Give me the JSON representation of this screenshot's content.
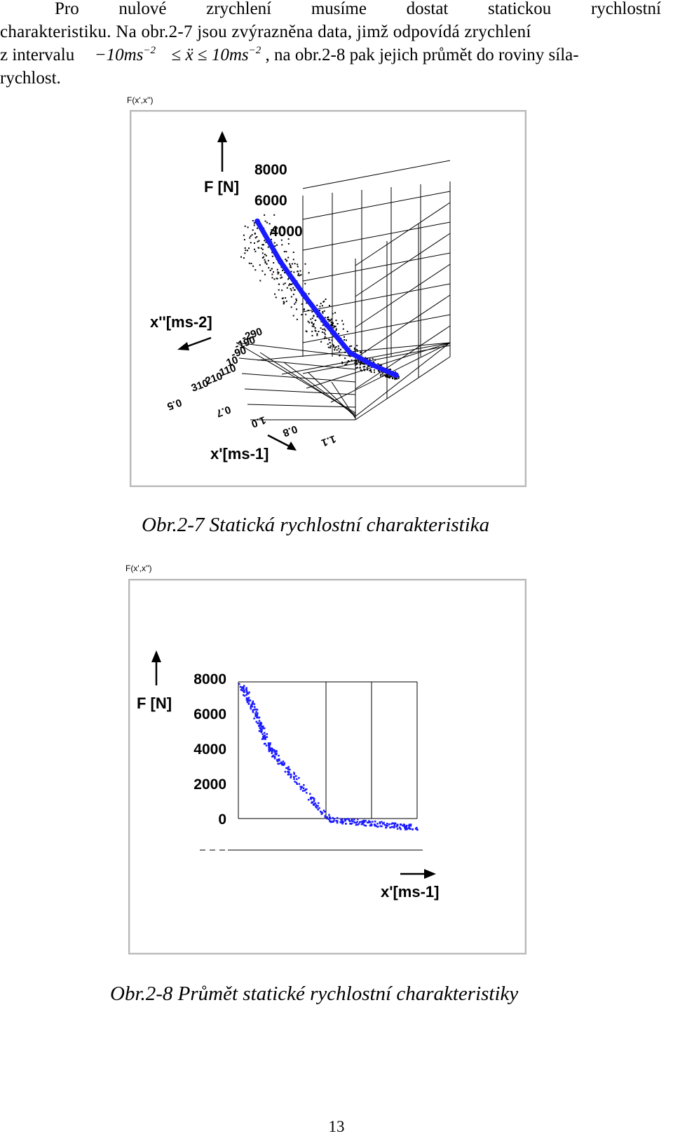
{
  "paragraph": {
    "line1": [
      "Pro",
      "nulové",
      "zrychlení",
      "musíme",
      "dostat",
      "statickou",
      "rychlostní"
    ],
    "line2": "charakteristiku. Na obr.2-7 jsou zvýrazněna data, jimž odpovídá zrychlení",
    "line3_prefix": "z intervalu",
    "math_a": "−10ms",
    "math_exp": "−2",
    "math_le1": "≤",
    "math_var": "ẍ",
    "math_le2": "≤",
    "math_b": "10ms",
    "line3_suffix": ", na obr.2-8 pak jejich průmět do roviny síla-",
    "line4": "rychlost."
  },
  "figure1": {
    "corner_label": "F(x',x'')",
    "axis_f": "F [N]",
    "axis_acc": "x''[ms-2]",
    "axis_vel": "x'[ms-1]",
    "f_ticks": [
      "8000",
      "6000",
      "4000"
    ],
    "acc_ticks": [
      "-290",
      "-190",
      "-90",
      "10",
      "110",
      "210",
      "310"
    ],
    "vel_ticks": [
      "0.5",
      "0.7",
      "1.0",
      "0.8",
      "1.1"
    ],
    "caption": "Obr.2-7  Statická rychlostní charakteristika"
  },
  "figure2": {
    "corner_label": "F(x',x'')",
    "axis_f": "F [N]",
    "axis_vel": "x'[ms-1]",
    "caption": "Obr.2-8  Průmět statické rychlostní charakteristiky"
  },
  "chart_data": [
    {
      "type": "scatter",
      "title": "",
      "xlabel": "x'[ms-1]",
      "ylabel": "F [N]",
      "zlabel": "x''[ms-2]",
      "x_ticks": [
        "0.5",
        "0.7",
        "1.0",
        "0.8",
        "1.1"
      ],
      "y_ticks": [
        "8000",
        "6000",
        "4000"
      ],
      "z_ticks": [
        "-290",
        "-190",
        "-90",
        "10",
        "110",
        "210",
        "310"
      ],
      "grid": true,
      "series": [
        {
          "color": "#1a1aff",
          "x": [
            0.5,
            0.6,
            0.7,
            0.8,
            0.9,
            1.0,
            1.1
          ],
          "y": [
            6200,
            4600,
            3300,
            2100,
            1000,
            500,
            100
          ]
        }
      ]
    },
    {
      "type": "scatter",
      "title": "",
      "xlabel": "x'[ms-1]",
      "ylabel": "F [N]",
      "y_ticks": [
        "8000",
        "6000",
        "4000",
        "2000",
        "0"
      ],
      "ylim": [
        -2000,
        8000
      ],
      "grid": true,
      "series": [
        {
          "color": "#1a1aff",
          "x": [
            0.0,
            0.05,
            0.1,
            0.15,
            0.2,
            0.3,
            0.4,
            0.5,
            0.6,
            0.7,
            0.8,
            0.9,
            1.0
          ],
          "y": [
            7700,
            6800,
            5600,
            4200,
            3600,
            2400,
            1200,
            0,
            -100,
            -200,
            -300,
            -400,
            -450
          ]
        }
      ]
    }
  ]
}
